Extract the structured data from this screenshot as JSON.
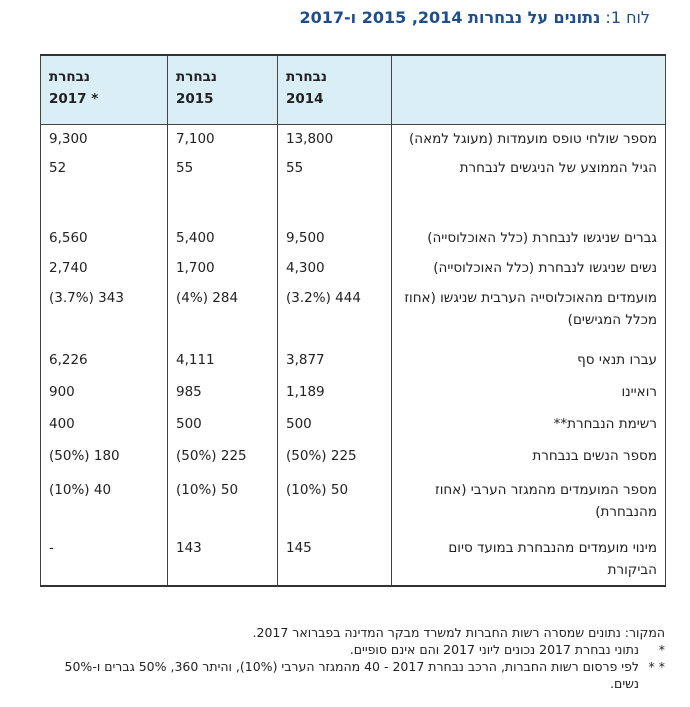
{
  "title": {
    "label": "לוח 1:",
    "text": "נתונים על נבחרות 2014, 2015 ו-2017"
  },
  "columns": [
    {
      "line1": "נבחרת",
      "line2": "2014"
    },
    {
      "line1": "נבחרת",
      "line2": "2015"
    },
    {
      "line1": "נבחרת",
      "line2": "* 2017"
    }
  ],
  "rows": [
    {
      "desc": "מספר שולחי טופס מועמדות (מעוגל למאה)",
      "v2014": "13,800",
      "v2015": "7,100",
      "v2017": "9,300"
    },
    {
      "desc": "הגיל הממוצע של הניגשים לנבחרת",
      "v2014": "55",
      "v2015": "55",
      "v2017": "52"
    },
    {
      "desc": "גברים שניגשו לנבחרת (כלל האוכלוסייה)",
      "v2014": "9,500",
      "v2015": "5,400",
      "v2017": "6,560"
    },
    {
      "desc": "נשים שניגשו לנבחרת (כלל האוכלוסייה)",
      "v2014": "4,300",
      "v2015": "1,700",
      "v2017": "2,740"
    },
    {
      "desc": "מועמדים מהאוכלוסייה הערבית שניגשו (אחוז מכלל המגישים)",
      "v2014": "444 (3.2%)",
      "v2015": "284 (4%)",
      "v2017": "343 (3.7%)"
    },
    {
      "desc": "עברו תנאי סף",
      "v2014": "3,877",
      "v2015": "4,111",
      "v2017": "6,226"
    },
    {
      "desc": "רואיינו",
      "v2014": "1,189",
      "v2015": "985",
      "v2017": "900"
    },
    {
      "desc": "רשימת הנבחרת**",
      "v2014": "500",
      "v2015": "500",
      "v2017": "400"
    },
    {
      "desc": "מספר הנשים בנבחרת",
      "v2014": "225 (50%)",
      "v2015": "225 (50%)",
      "v2017": "180 (50%)"
    },
    {
      "desc": "מספר המועמדים מהמגזר הערבי (אחוז מהנבחרת)",
      "v2014": "50 (10%)",
      "v2015": "50 (10%)",
      "v2017": "40 (10%)"
    },
    {
      "desc": "מינוי מועמדים מהנבחרת במועד סיום הביקורת",
      "v2014": "145",
      "v2015": "143",
      "v2017": "-"
    }
  ],
  "footnotes": {
    "source": "המקור: נתונים שמסרה רשות החברות למשרד מבקר המדינה בפברואר 2017.",
    "note1_mark": "*",
    "note1": "נתוני נבחרת 2017 נכונים ליוני 2017 והם אינם סופיים.",
    "note2_mark": "* *",
    "note2": "לפי פרסום רשות החברות, הרכב נבחרת 2017 - 40 מהמגזר הערבי (10%), והיתר 360, 50% גברים ו-50% נשים."
  }
}
